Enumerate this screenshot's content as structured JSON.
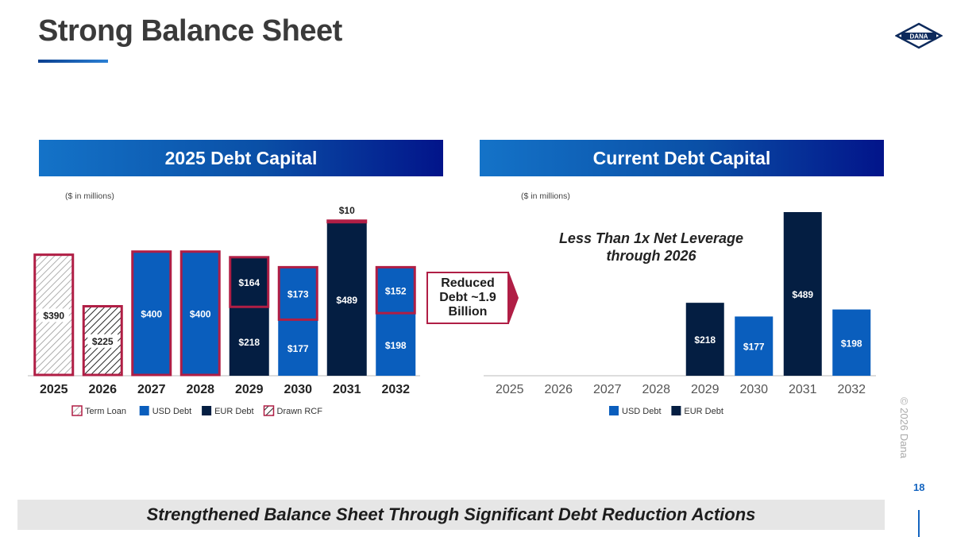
{
  "title": "Strong Balance Sheet",
  "logo_text": "DANA",
  "colors": {
    "usd": "#0a5ebd",
    "eur": "#041e42",
    "highlight": "#b01e45",
    "accent": "#1565c0"
  },
  "reduced_debt_text": "Reduced Debt ~1.9 Billion",
  "footer_text": "Strengthened Balance Sheet Through Significant Debt Reduction Actions",
  "copyright": "© 2026 Dana",
  "page_number": "18",
  "chart_data": [
    {
      "type": "bar",
      "stacked": true,
      "title": "2025 Debt Capital",
      "unit_note": "($ in millions)",
      "categories": [
        "2025",
        "2026",
        "2027",
        "2028",
        "2029",
        "2030",
        "2031",
        "2032"
      ],
      "series": [
        {
          "name": "Term Loan",
          "values": [
            390,
            0,
            0,
            0,
            0,
            0,
            0,
            0
          ]
        },
        {
          "name": "Drawn RCF",
          "values": [
            0,
            225,
            0,
            0,
            0,
            0,
            0,
            0
          ]
        },
        {
          "name": "USD Debt",
          "values": [
            0,
            0,
            400,
            400,
            0,
            177,
            0,
            198
          ]
        },
        {
          "name": "EUR Debt",
          "values": [
            0,
            0,
            0,
            0,
            218,
            0,
            489,
            0
          ]
        },
        {
          "name": "USD Debt (reduced)",
          "values": [
            0,
            0,
            0,
            0,
            0,
            173,
            0,
            152
          ]
        },
        {
          "name": "EUR Debt (reduced)",
          "values": [
            0,
            0,
            0,
            0,
            164,
            0,
            10,
            0
          ]
        }
      ],
      "legend": [
        "Term Loan",
        "USD Debt",
        "EUR Debt",
        "Drawn RCF"
      ],
      "ylim": [
        0,
        500
      ]
    },
    {
      "type": "bar",
      "stacked": true,
      "title": "Current Debt Capital",
      "unit_note": "($ in millions)",
      "annotation": "Less Than 1x Net Leverage through 2026",
      "categories": [
        "2025",
        "2026",
        "2027",
        "2028",
        "2029",
        "2030",
        "2031",
        "2032"
      ],
      "series": [
        {
          "name": "USD Debt",
          "values": [
            0,
            0,
            0,
            0,
            0,
            177,
            0,
            198
          ]
        },
        {
          "name": "EUR Debt",
          "values": [
            0,
            0,
            0,
            0,
            218,
            0,
            489,
            0
          ]
        }
      ],
      "legend": [
        "USD Debt",
        "EUR Debt"
      ],
      "ylim": [
        0,
        500
      ]
    }
  ]
}
